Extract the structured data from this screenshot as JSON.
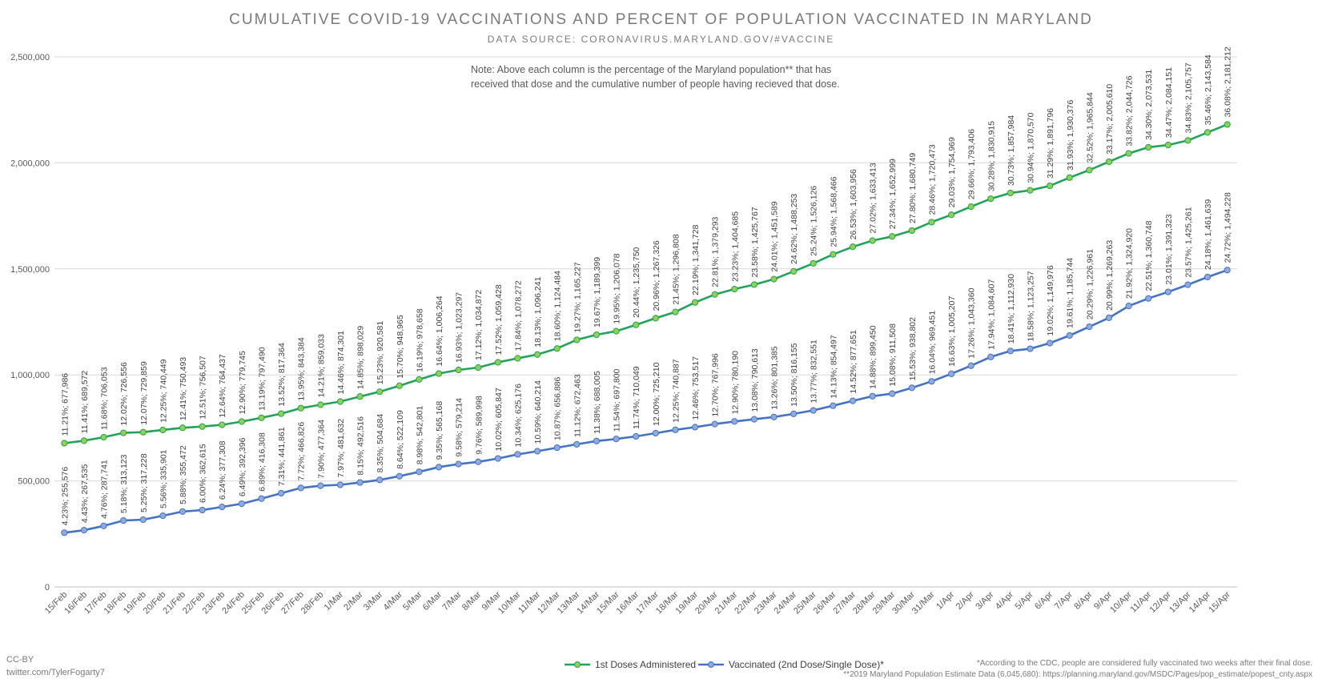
{
  "title": "CUMULATIVE COVID-19 VACCINATIONS AND PERCENT OF POPULATION VACCINATED IN MARYLAND",
  "subtitle": "DATA SOURCE: CORONAVIRUS.MARYLAND.GOV/#VACCINE",
  "note_line1": "Note: Above each column is the percentage of the Maryland population** that has",
  "note_line2": "received that dose and the cumulative number of people having recieved that dose.",
  "footer": {
    "ccby": "CC-BY",
    "twitter": "twitter.com/TylerFogarty7",
    "cdc_note": "*According to the CDC, people are considered fully vaccinated two weeks after their final dose.",
    "pop_note": "**2019 Maryland Population Estimate Data (6,045,680): https://planning.maryland.gov/MSDC/Pages/pop_estimate/popest_cnty.aspx"
  },
  "colors": {
    "first_dose_line": "#21a35a",
    "first_dose_marker": "#92d050",
    "vaccinated_line": "#4472c4",
    "vaccinated_marker": "#8faadc",
    "grid": "#d9d9d9",
    "text": "#595959"
  },
  "chart_data": {
    "type": "line",
    "categories": [
      "15/Feb",
      "16/Feb",
      "17/Feb",
      "18/Feb",
      "19/Feb",
      "20/Feb",
      "21/Feb",
      "22/Feb",
      "23/Feb",
      "24/Feb",
      "25/Feb",
      "26/Feb",
      "27/Feb",
      "28/Feb",
      "1/Mar",
      "2/Mar",
      "3/Mar",
      "4/Mar",
      "5/Mar",
      "6/Mar",
      "7/Mar",
      "8/Mar",
      "9/Mar",
      "10/Mar",
      "11/Mar",
      "12/Mar",
      "13/Mar",
      "14/Mar",
      "15/Mar",
      "16/Mar",
      "17/Mar",
      "18/Mar",
      "19/Mar",
      "20/Mar",
      "21/Mar",
      "22/Mar",
      "23/Mar",
      "24/Mar",
      "25/Mar",
      "26/Mar",
      "27/Mar",
      "28/Mar",
      "29/Mar",
      "30/Mar",
      "31/Mar",
      "1/Apr",
      "2/Apr",
      "3/Apr",
      "4/Apr",
      "5/Apr",
      "6/Apr",
      "7/Apr",
      "8/Apr",
      "9/Apr",
      "10/Apr",
      "11/Apr",
      "12/Apr",
      "13/Apr",
      "14/Apr",
      "15/Apr"
    ],
    "ylim": [
      0,
      2500000
    ],
    "yticks": [
      "0",
      "500,000",
      "1,000,000",
      "1,500,000",
      "2,000,000",
      "2,500,000"
    ],
    "grid": true,
    "legend_position": "bottom",
    "series": [
      {
        "name": "1st Doses Administered",
        "values": [
          677986,
          689572,
          706053,
          726556,
          729859,
          740449,
          750493,
          756507,
          764437,
          779745,
          797490,
          817364,
          843384,
          859033,
          874301,
          898029,
          920581,
          948965,
          978658,
          1006264,
          1023297,
          1034872,
          1059428,
          1078272,
          1096241,
          1124484,
          1165227,
          1189399,
          1206078,
          1235750,
          1267326,
          1296808,
          1341728,
          1379293,
          1404685,
          1425767,
          1451589,
          1488253,
          1526126,
          1568466,
          1603956,
          1633413,
          1652999,
          1680749,
          1720473,
          1754969,
          1793406,
          1830915,
          1857984,
          1870570,
          1891796,
          1930376,
          1965844,
          2005610,
          2044726,
          2073531,
          2084151,
          2105757,
          2143584,
          2181212
        ],
        "labels": [
          "11.21%; 677,986",
          "11.41%; 689,572",
          "11.68%; 706,053",
          "12.02%; 726,556",
          "12.07%; 729,859",
          "12.25%; 740,449",
          "12.41%; 750,493",
          "12.51%; 756,507",
          "12.64%; 764,437",
          "12.90%; 779,745",
          "13.19%; 797,490",
          "13.52%; 817,364",
          "13.95%; 843,384",
          "14.21%; 859,033",
          "14.46%; 874,301",
          "14.85%; 898,029",
          "15.23%; 920,581",
          "15.70%; 948,965",
          "16.19%; 978,658",
          "16.64%; 1,006,264",
          "16.93%; 1,023,297",
          "17.12%; 1,034,872",
          "17.52%; 1,059,428",
          "17.84%; 1,078,272",
          "18.13%; 1,096,241",
          "18.60%; 1,124,484",
          "19.27%; 1,165,227",
          "19.67%; 1,189,399",
          "19.95%; 1,206,078",
          "20.44%; 1,235,750",
          "20.96%; 1,267,326",
          "21.45%; 1,296,808",
          "22.19%; 1,341,728",
          "22.81%; 1,379,293",
          "23.23%; 1,404,685",
          "23.58%; 1,425,767",
          "24.01%; 1,451,589",
          "24.62%; 1,488,253",
          "25.24%; 1,526,126",
          "25.94%; 1,568,466",
          "26.53%; 1,603,956",
          "27.02%; 1,633,413",
          "27.34%; 1,652,999",
          "27.80%; 1,680,749",
          "28.46%; 1,720,473",
          "29.03%; 1,754,969",
          "29.66%; 1,793,406",
          "30.28%; 1,830,915",
          "30.73%; 1,857,984",
          "30.94%; 1,870,570",
          "31.29%; 1,891,796",
          "31.93%; 1,930,376",
          "32.52%; 1,965,844",
          "33.17%; 2,005,610",
          "33.82%; 2,044,726",
          "34.30%; 2,073,531",
          "34.47%; 2,084,151",
          "34.83%; 2,105,757",
          "35.46%; 2,143,584",
          "36.08%; 2,181,212"
        ]
      },
      {
        "name": "Vaccinated (2nd Dose/Single Dose)*",
        "values": [
          255576,
          267535,
          287741,
          313123,
          317228,
          335901,
          355472,
          362615,
          377308,
          392396,
          416308,
          441861,
          466826,
          477364,
          481632,
          492516,
          504684,
          522109,
          542801,
          565168,
          579214,
          589998,
          605847,
          625176,
          640214,
          656886,
          672463,
          688005,
          697800,
          710049,
          725210,
          740887,
          753517,
          767996,
          780190,
          790613,
          801385,
          816155,
          832551,
          854497,
          877651,
          899450,
          911508,
          938802,
          969451,
          1005207,
          1043360,
          1084607,
          1112930,
          1123257,
          1149976,
          1185744,
          1226961,
          1269263,
          1324920,
          1360748,
          1391323,
          1425261,
          1461639,
          1494228
        ],
        "labels": [
          "4.23%; 255,576",
          "4.43%; 267,535",
          "4.76%; 287,741",
          "5.18%; 313,123",
          "5.25%; 317,228",
          "5.56%; 335,901",
          "5.88%; 355,472",
          "6.00%; 362,615",
          "6.24%; 377,308",
          "6.49%; 392,396",
          "6.89%; 416,308",
          "7.31%; 441,861",
          "7.72%; 466,826",
          "7.90%; 477,364",
          "7.97%; 481,632",
          "8.15%; 492,516",
          "8.35%; 504,684",
          "8.64%; 522,109",
          "8.98%; 542,801",
          "9.35%; 565,168",
          "9.58%; 579,214",
          "9.76%; 589,998",
          "10.02%; 605,847",
          "10.34%; 625,176",
          "10.59%; 640,214",
          "10.87%; 656,886",
          "11.12%; 672,463",
          "11.38%; 688,005",
          "11.54%; 697,800",
          "11.74%; 710,049",
          "12.00%; 725,210",
          "12.25%; 740,887",
          "12.46%; 753,517",
          "12.70%; 767,996",
          "12.90%; 780,190",
          "13.08%; 790,613",
          "13.26%; 801,385",
          "13.50%; 816,155",
          "13.77%; 832,551",
          "14.13%; 854,497",
          "14.52%; 877,651",
          "14.88%; 899,450",
          "15.08%; 911,508",
          "15.53%; 938,802",
          "16.04%; 969,451",
          "16.63%; 1,005,207",
          "17.26%; 1,043,360",
          "17.94%; 1,084,607",
          "18.41%; 1,112,930",
          "18.58%; 1,123,257",
          "19.02%; 1,149,976",
          "19.61%; 1,185,744",
          "20.29%; 1,226,961",
          "20.99%; 1,269,263",
          "21.92%; 1,324,920",
          "22.51%; 1,360,748",
          "23.01%; 1,391,323",
          "23.57%; 1,425,261",
          "24.18%; 1,461,639",
          "24.72%; 1,494,228"
        ]
      }
    ]
  }
}
